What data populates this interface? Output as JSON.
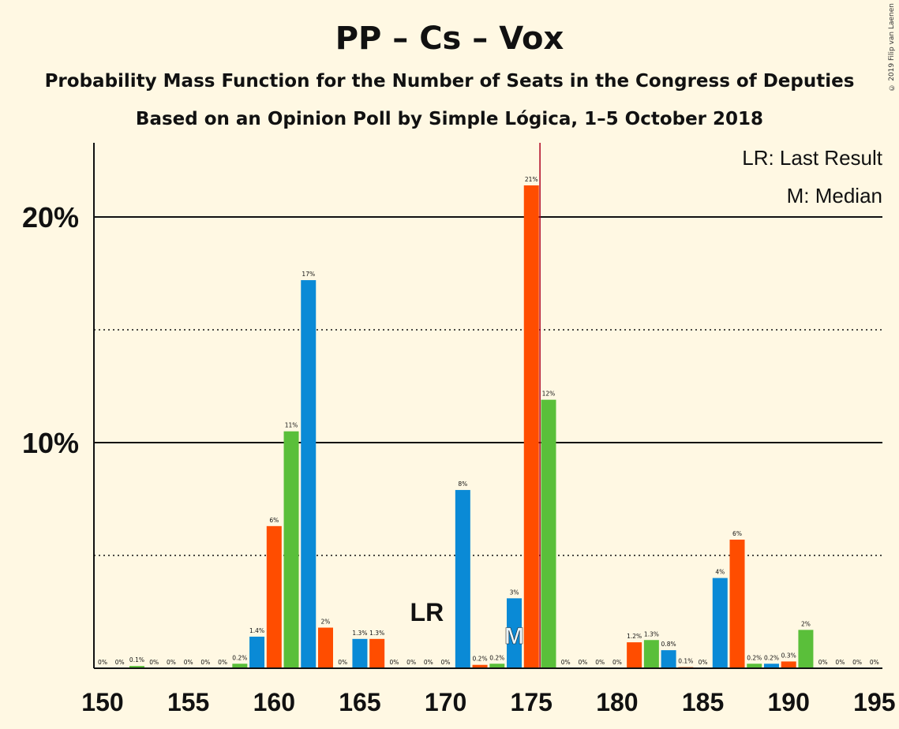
{
  "title": "PP – Cs – Vox",
  "subtitle": "Probability Mass Function for the Number of Seats in the Congress of Deputies",
  "subtitle2": "Based on an Opinion Poll by Simple Lógica, 1–5 October 2018",
  "copyright": "© 2019 Filip van Laenen",
  "legend": {
    "last_result": "LR: Last Result",
    "median": "M: Median"
  },
  "markers": {
    "last_result_label": "LR",
    "median_label": "M",
    "last_result_seat": 169,
    "median_seat": 174,
    "majority_line_seat": 175.5
  },
  "colors": {
    "background": "#FFF8E3",
    "blue": "#0A8AD6",
    "orange": "#FF4D00",
    "green": "#5ABF3A",
    "majority_line": "#B00020"
  },
  "chart_data": {
    "type": "bar",
    "xlim": [
      150,
      195
    ],
    "ylim": [
      0,
      22
    ],
    "y_ticks": [
      {
        "value": 10,
        "label": "10%"
      },
      {
        "value": 20,
        "label": "20%"
      }
    ],
    "minor_gridlines": [
      5,
      15
    ],
    "x_ticks": [
      150,
      155,
      160,
      165,
      170,
      175,
      180,
      185,
      190,
      195
    ],
    "x_tick_labels": [
      "150",
      "155",
      "160",
      "165",
      "170",
      "175",
      "180",
      "185",
      "190",
      "195"
    ],
    "bars": [
      {
        "seat": 150,
        "value": 0,
        "label": "0%",
        "color": "blue"
      },
      {
        "seat": 151,
        "value": 0,
        "label": "0%",
        "color": "orange"
      },
      {
        "seat": 152,
        "value": 0.1,
        "label": "0.1%",
        "color": "green"
      },
      {
        "seat": 153,
        "value": 0,
        "label": "0%",
        "color": "blue"
      },
      {
        "seat": 154,
        "value": 0,
        "label": "0%",
        "color": "orange"
      },
      {
        "seat": 155,
        "value": 0,
        "label": "0%",
        "color": "green"
      },
      {
        "seat": 156,
        "value": 0,
        "label": "0%",
        "color": "blue"
      },
      {
        "seat": 157,
        "value": 0,
        "label": "0%",
        "color": "orange"
      },
      {
        "seat": 158,
        "value": 0.2,
        "label": "0.2%",
        "color": "green"
      },
      {
        "seat": 159,
        "value": 1.4,
        "label": "1.4%",
        "color": "blue"
      },
      {
        "seat": 160,
        "value": 6.3,
        "label": "6%",
        "color": "orange"
      },
      {
        "seat": 161,
        "value": 10.5,
        "label": "11%",
        "color": "green"
      },
      {
        "seat": 162,
        "value": 17.2,
        "label": "17%",
        "color": "blue"
      },
      {
        "seat": 163,
        "value": 1.8,
        "label": "2%",
        "color": "orange"
      },
      {
        "seat": 164,
        "value": 0,
        "label": "0%",
        "color": "green"
      },
      {
        "seat": 165,
        "value": 1.3,
        "label": "1.3%",
        "color": "blue"
      },
      {
        "seat": 166,
        "value": 1.3,
        "label": "1.3%",
        "color": "orange"
      },
      {
        "seat": 167,
        "value": 0,
        "label": "0%",
        "color": "green"
      },
      {
        "seat": 168,
        "value": 0,
        "label": "0%",
        "color": "blue"
      },
      {
        "seat": 169,
        "value": 0,
        "label": "0%",
        "color": "orange"
      },
      {
        "seat": 170,
        "value": 0,
        "label": "0%",
        "color": "green"
      },
      {
        "seat": 171,
        "value": 7.9,
        "label": "8%",
        "color": "blue"
      },
      {
        "seat": 172,
        "value": 0.15,
        "label": "0.2%",
        "color": "orange"
      },
      {
        "seat": 173,
        "value": 0.2,
        "label": "0.2%",
        "color": "green"
      },
      {
        "seat": 174,
        "value": 3.1,
        "label": "3%",
        "color": "blue"
      },
      {
        "seat": 175,
        "value": 21.4,
        "label": "21%",
        "color": "orange"
      },
      {
        "seat": 176,
        "value": 11.9,
        "label": "12%",
        "color": "green"
      },
      {
        "seat": 177,
        "value": 0,
        "label": "0%",
        "color": "blue"
      },
      {
        "seat": 178,
        "value": 0,
        "label": "0%",
        "color": "orange"
      },
      {
        "seat": 179,
        "value": 0,
        "label": "0%",
        "color": "green"
      },
      {
        "seat": 180,
        "value": 0,
        "label": "0%",
        "color": "blue"
      },
      {
        "seat": 181,
        "value": 1.15,
        "label": "1.2%",
        "color": "orange"
      },
      {
        "seat": 182,
        "value": 1.25,
        "label": "1.3%",
        "color": "green"
      },
      {
        "seat": 183,
        "value": 0.8,
        "label": "0.8%",
        "color": "blue"
      },
      {
        "seat": 184,
        "value": 0.05,
        "label": "0.1%",
        "color": "orange"
      },
      {
        "seat": 185,
        "value": 0,
        "label": "0%",
        "color": "green"
      },
      {
        "seat": 186,
        "value": 4.0,
        "label": "4%",
        "color": "blue"
      },
      {
        "seat": 187,
        "value": 5.7,
        "label": "6%",
        "color": "orange"
      },
      {
        "seat": 188,
        "value": 0.2,
        "label": "0.2%",
        "color": "green"
      },
      {
        "seat": 189,
        "value": 0.2,
        "label": "0.2%",
        "color": "blue"
      },
      {
        "seat": 190,
        "value": 0.3,
        "label": "0.3%",
        "color": "orange"
      },
      {
        "seat": 191,
        "value": 1.7,
        "label": "2%",
        "color": "green"
      },
      {
        "seat": 192,
        "value": 0,
        "label": "0%",
        "color": "blue"
      },
      {
        "seat": 193,
        "value": 0,
        "label": "0%",
        "color": "orange"
      },
      {
        "seat": 194,
        "value": 0,
        "label": "0%",
        "color": "green"
      },
      {
        "seat": 195,
        "value": 0,
        "label": "0%",
        "color": "blue"
      }
    ]
  }
}
